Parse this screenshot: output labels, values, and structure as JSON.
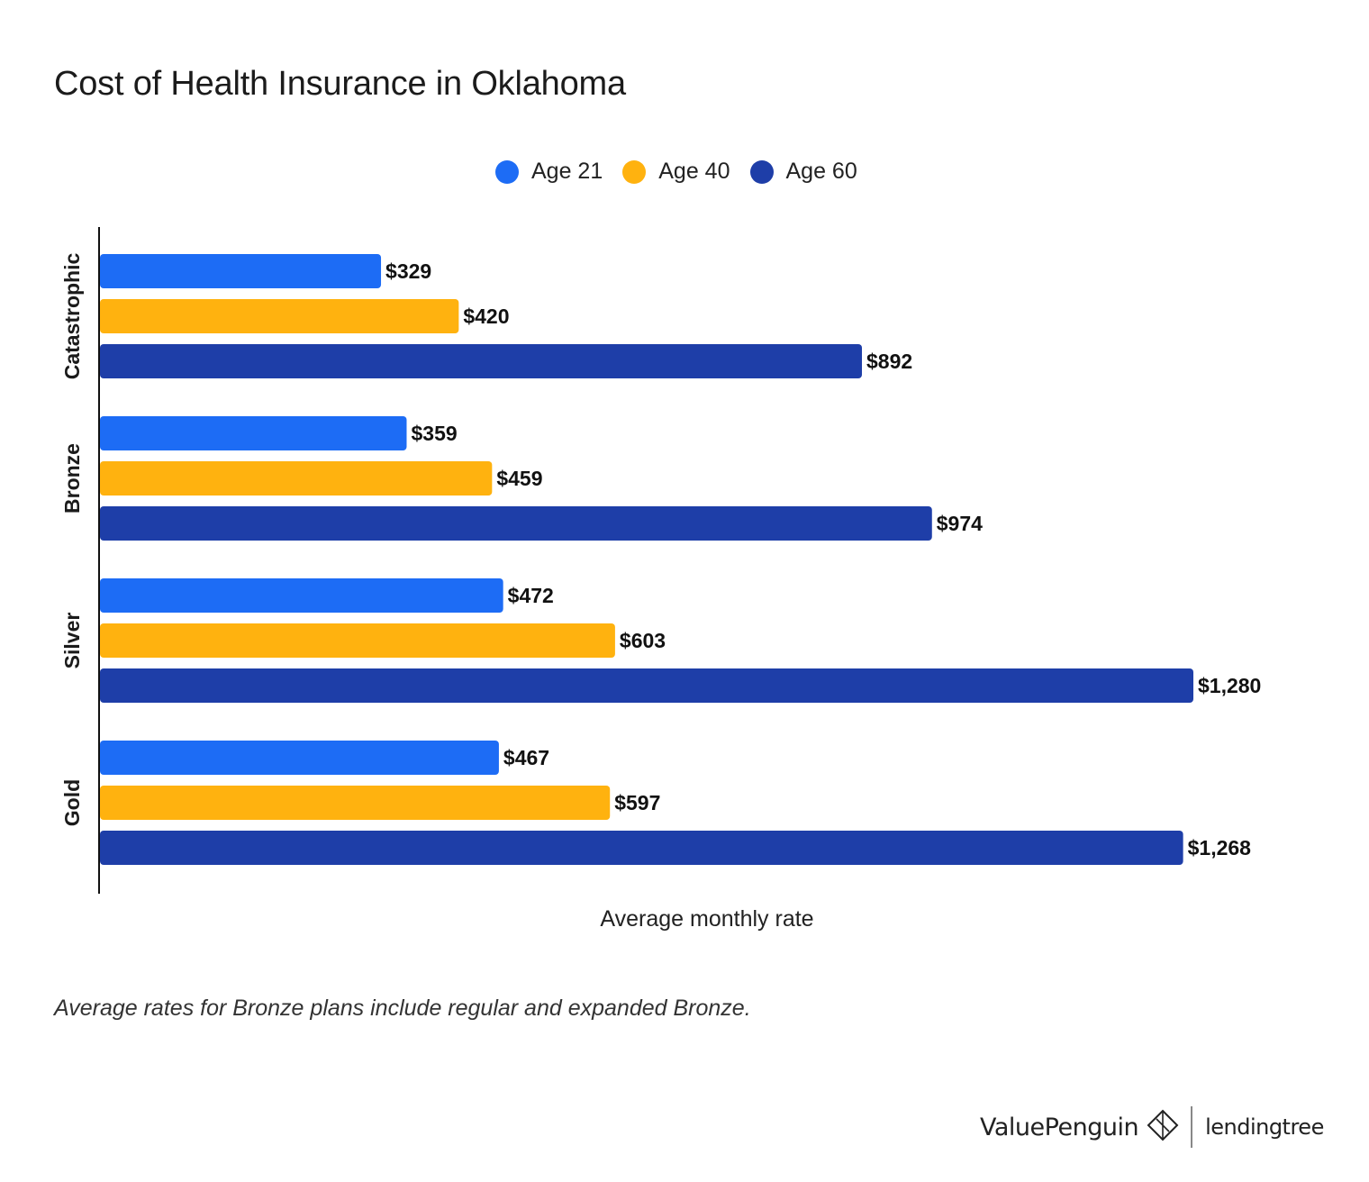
{
  "chart_data": {
    "type": "bar",
    "orientation": "horizontal",
    "title": "Cost of Health Insurance in Oklahoma",
    "categories": [
      "Catastrophic",
      "Bronze",
      "Silver",
      "Gold"
    ],
    "series": [
      {
        "name": "Age 21",
        "color": "#1d6cf5",
        "values": [
          329,
          359,
          472,
          467
        ],
        "labels": [
          "$329",
          "$359",
          "$472",
          "$467"
        ]
      },
      {
        "name": "Age 40",
        "color": "#ffb20f",
        "values": [
          420,
          459,
          603,
          597
        ],
        "labels": [
          "$420",
          "$459",
          "$603",
          "$597"
        ]
      },
      {
        "name": "Age 60",
        "color": "#1e3ea8",
        "values": [
          892,
          974,
          1280,
          1268
        ],
        "labels": [
          "$892",
          "$974",
          "$1,280",
          "$1,268"
        ]
      }
    ],
    "xlabel": "Average monthly rate",
    "ylabel": "",
    "xlim": [
      0,
      1280
    ],
    "grid": false,
    "legend_position": "top-center"
  },
  "footnote": "Average rates for Bronze plans include regular and expanded Bronze.",
  "branding": {
    "valuepenguin": "ValuePenguin",
    "lendingtree": "lendingtree"
  }
}
